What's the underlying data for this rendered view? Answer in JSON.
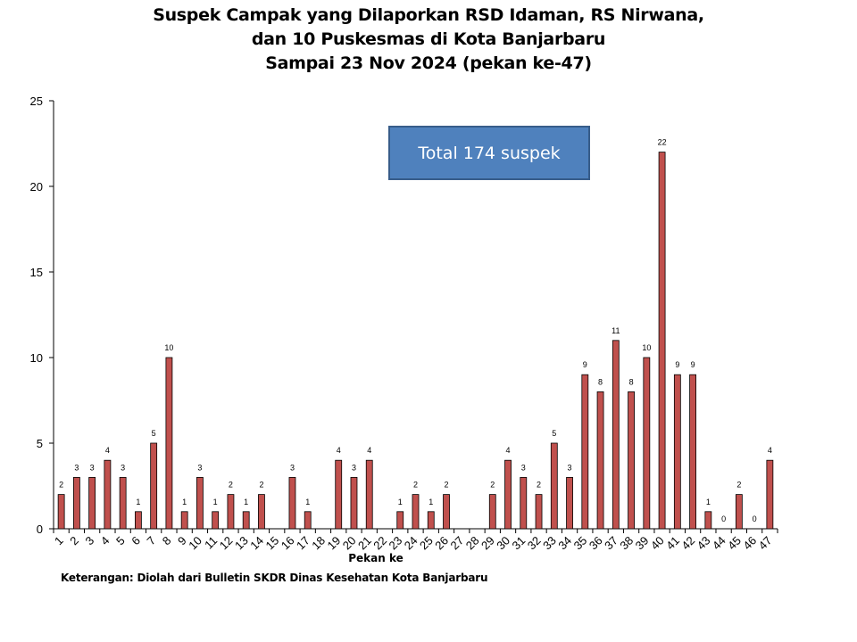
{
  "title_lines": [
    "Suspek Campak yang Dilaporkan RSD Idaman, RS Nirwana,",
    "dan 10 Puskesmas di Kota Banjarbaru",
    "Sampai 23 Nov 2024 (pekan ke-47)"
  ],
  "annotation": "Total 174 suspek",
  "footnote": "Keterangan: Diolah dari Bulletin SKDR Dinas Kesehatan Kota Banjarbaru",
  "colors": {
    "bar_fill": "#c0504d",
    "bar_stroke": "#000000",
    "box_fill": "#4f81bd"
  },
  "chart_data": {
    "type": "bar",
    "title": "Suspek Campak yang Dilaporkan RSD Idaman, RS Nirwana, dan 10 Puskesmas di Kota Banjarbaru Sampai 23 Nov 2024 (pekan ke-47)",
    "xlabel": "Pekan ke",
    "ylabel": "",
    "ylim": [
      0,
      25
    ],
    "yticks": [
      0,
      5,
      10,
      15,
      20,
      25
    ],
    "grid": false,
    "categories": [
      "1",
      "2",
      "3",
      "4",
      "5",
      "6",
      "7",
      "8",
      "9",
      "10",
      "11",
      "12",
      "13",
      "14",
      "15",
      "16",
      "17",
      "18",
      "19",
      "20",
      "21",
      "22",
      "23",
      "24",
      "25",
      "26",
      "27",
      "28",
      "29",
      "30",
      "31",
      "32",
      "33",
      "34",
      "35",
      "36",
      "37",
      "38",
      "39",
      "40",
      "41",
      "42",
      "43",
      "44",
      "45",
      "46",
      "47"
    ],
    "values": [
      2,
      3,
      3,
      4,
      3,
      1,
      5,
      10,
      1,
      3,
      1,
      2,
      1,
      2,
      null,
      3,
      1,
      null,
      4,
      3,
      4,
      null,
      1,
      2,
      1,
      2,
      null,
      null,
      2,
      4,
      3,
      2,
      5,
      3,
      9,
      8,
      11,
      8,
      10,
      22,
      9,
      9,
      1,
      0,
      2,
      0,
      4
    ]
  }
}
